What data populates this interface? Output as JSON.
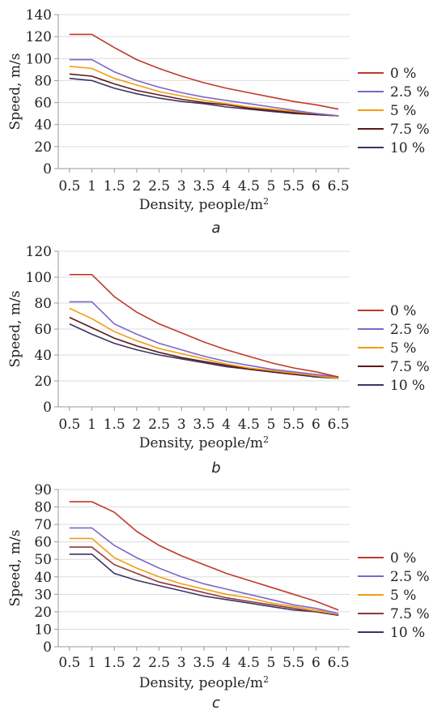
{
  "chart_data": [
    {
      "type": "line",
      "panel_label": "a",
      "xlabel": "Density, people/m",
      "xlabel_sup": "2",
      "ylabel": "Speed, m/s",
      "categories": [
        "0.5",
        "1",
        "1.5",
        "2",
        "2.5",
        "3",
        "3.5",
        "4",
        "4.5",
        "5",
        "5.5",
        "6",
        "6.5"
      ],
      "ylim": [
        0,
        140
      ],
      "yticks": [
        "0",
        "20",
        "40",
        "60",
        "80",
        "100",
        "120",
        "140"
      ],
      "grid": true,
      "legend_position": "right",
      "series": [
        {
          "name": "0 %",
          "color": "#c0392b",
          "values": [
            122,
            122,
            110,
            99,
            91,
            84,
            78,
            73,
            69,
            65,
            61,
            58,
            54
          ]
        },
        {
          "name": "2.5 %",
          "color": "#7b68c8",
          "values": [
            99,
            99,
            88,
            80,
            74,
            69,
            65,
            62,
            59,
            56,
            53,
            50,
            48
          ]
        },
        {
          "name": "5 %",
          "color": "#f39c12",
          "values": [
            93,
            91,
            82,
            76,
            70,
            66,
            62,
            59,
            56,
            54,
            52,
            50,
            48
          ]
        },
        {
          "name": "7.5 %",
          "color": "#5c1a1a",
          "values": [
            86,
            84,
            77,
            71,
            67,
            63,
            60,
            58,
            55,
            53,
            51,
            49,
            48
          ]
        },
        {
          "name": "10 %",
          "color": "#3b3563",
          "values": [
            82,
            80,
            73,
            68,
            64,
            61,
            59,
            56,
            54,
            52,
            50,
            49,
            48
          ]
        }
      ]
    },
    {
      "type": "line",
      "panel_label": "b",
      "xlabel": "Density, people/m",
      "xlabel_sup": "2",
      "ylabel": "Speed, m/s",
      "categories": [
        "0.5",
        "1",
        "1.5",
        "2",
        "2.5",
        "3",
        "3.5",
        "4",
        "4.5",
        "5",
        "5.5",
        "6",
        "6.5"
      ],
      "ylim": [
        0,
        120
      ],
      "yticks": [
        "0",
        "20",
        "40",
        "60",
        "80",
        "100",
        "120"
      ],
      "grid": true,
      "legend_position": "right",
      "series": [
        {
          "name": "0 %",
          "color": "#c0392b",
          "values": [
            102,
            102,
            85,
            73,
            64,
            57,
            50,
            44,
            39,
            34,
            30,
            27,
            23
          ]
        },
        {
          "name": "2.5 %",
          "color": "#7b68c8",
          "values": [
            81,
            81,
            64,
            56,
            49,
            44,
            39,
            35,
            32,
            29,
            27,
            25,
            23
          ]
        },
        {
          "name": "5 %",
          "color": "#f39c12",
          "values": [
            76,
            68,
            58,
            51,
            45,
            41,
            37,
            33,
            30,
            28,
            26,
            24,
            22
          ]
        },
        {
          "name": "7.5 %",
          "color": "#5c1a1a",
          "values": [
            69,
            61,
            53,
            47,
            42,
            38,
            35,
            32,
            29,
            27,
            25,
            24,
            22
          ]
        },
        {
          "name": "10 %",
          "color": "#3b3563",
          "values": [
            64,
            56,
            49,
            44,
            40,
            37,
            34,
            31,
            29,
            27,
            25,
            23,
            22
          ]
        }
      ]
    },
    {
      "type": "line",
      "panel_label": "c",
      "xlabel": "Density, people/m",
      "xlabel_sup": "2",
      "ylabel": "Speed, m/s",
      "categories": [
        "0.5",
        "1",
        "1.5",
        "2",
        "2.5",
        "3",
        "3.5",
        "4",
        "4.5",
        "5",
        "5.5",
        "6",
        "6.5"
      ],
      "ylim": [
        0,
        90
      ],
      "yticks": [
        "0",
        "10",
        "20",
        "30",
        "40",
        "50",
        "60",
        "70",
        "80",
        "90"
      ],
      "grid": true,
      "legend_position": "right",
      "series": [
        {
          "name": "0 %",
          "color": "#c0392b",
          "values": [
            83,
            83,
            77,
            66,
            58,
            52,
            47,
            42,
            38,
            34,
            30,
            26,
            21
          ]
        },
        {
          "name": "2.5 %",
          "color": "#7b68c8",
          "values": [
            68,
            68,
            58,
            51,
            45,
            40,
            36,
            33,
            30,
            27,
            24,
            22,
            19
          ]
        },
        {
          "name": "5 %",
          "color": "#f39c12",
          "values": [
            62,
            62,
            51,
            45,
            40,
            36,
            33,
            30,
            28,
            25,
            23,
            21,
            19
          ]
        },
        {
          "name": "7.5 %",
          "color": "#8e3a3a",
          "values": [
            57,
            57,
            47,
            42,
            37,
            34,
            31,
            28,
            26,
            24,
            22,
            20,
            18
          ]
        },
        {
          "name": "10 %",
          "color": "#3b3563",
          "values": [
            53,
            53,
            42,
            38,
            35,
            32,
            29,
            27,
            25,
            23,
            21,
            20,
            18
          ]
        }
      ]
    }
  ]
}
